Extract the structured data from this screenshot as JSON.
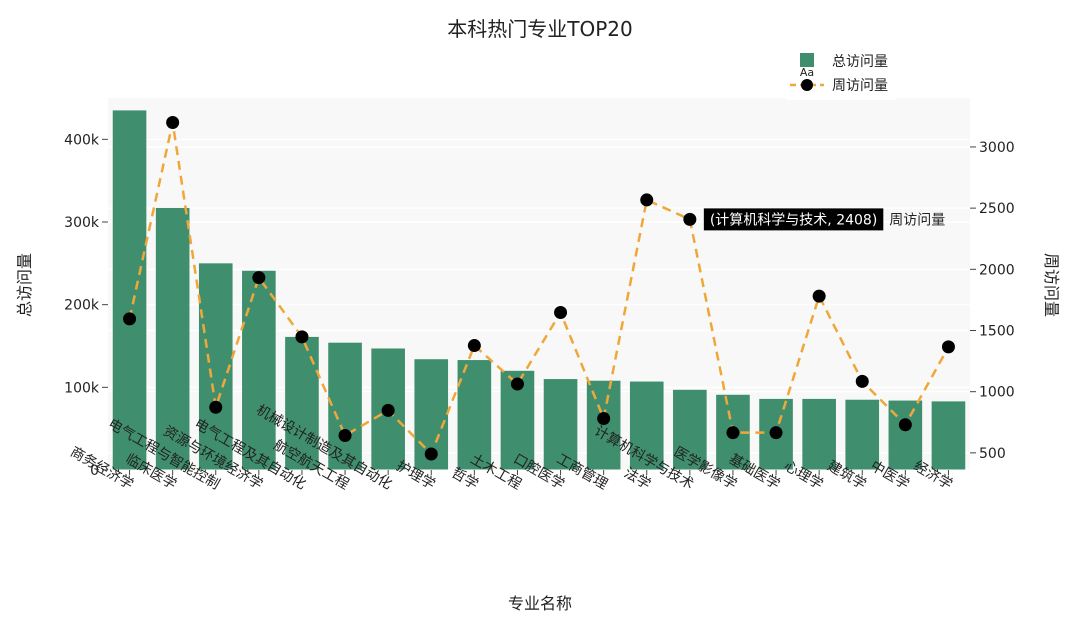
{
  "chart_data": {
    "type": "bar",
    "title": "本科热门专业TOP20",
    "xlabel": "专业名称",
    "ylabel_left": "总访问量",
    "ylabel_right": "周访问量",
    "categories": [
      "商务经济学",
      "临床医学",
      "电气工程与智能控制",
      "资源与环境经济学",
      "电气工程及其自动化",
      "航空航天工程",
      "机械设计制造及其自动化",
      "护理学",
      "哲学",
      "土木工程",
      "口腔医学",
      "工商管理",
      "法学",
      "计算机科学与技术",
      "医学影像学",
      "基础医学",
      "心理学",
      "建筑学",
      "中医学",
      "经济学"
    ],
    "series": [
      {
        "name": "总访问量",
        "type": "bar",
        "axis": "left",
        "values": [
          435000,
          317000,
          250000,
          241000,
          161000,
          154000,
          147000,
          134000,
          133000,
          120000,
          110000,
          108000,
          107000,
          97000,
          91000,
          86000,
          86000,
          85000,
          84000,
          83000
        ]
      },
      {
        "name": "周访问量",
        "type": "line",
        "axis": "right",
        "values": [
          1595,
          3200,
          873,
          1932,
          1448,
          642,
          847,
          491,
          1377,
          1063,
          1647,
          781,
          2567,
          2408,
          665,
          665,
          1781,
          1084,
          730,
          1366
        ]
      }
    ],
    "y_left": {
      "range": [
        0,
        450000
      ],
      "ticks": [
        0,
        100000,
        200000,
        300000,
        400000
      ],
      "tick_labels": [
        "0",
        "100k",
        "200k",
        "300k",
        "400k"
      ]
    },
    "y_right": {
      "range": [
        360,
        3400
      ],
      "ticks": [
        500,
        1000,
        1500,
        2000,
        2500,
        3000
      ],
      "tick_labels": [
        "500",
        "1000",
        "1500",
        "2000",
        "2500",
        "3000"
      ]
    },
    "legend_position": "top-right",
    "legend_marker_text": "Aa",
    "grid": true,
    "annotation": {
      "category_index": 13,
      "label": "(计算机科学与技术, 2408)",
      "series_label": "周访问量"
    },
    "colors": {
      "bar": "#3f8f6f",
      "line": "#f0a73a",
      "marker": "#000000",
      "plot_bg": "#f8f8f8",
      "grid": "#ffffff"
    }
  }
}
